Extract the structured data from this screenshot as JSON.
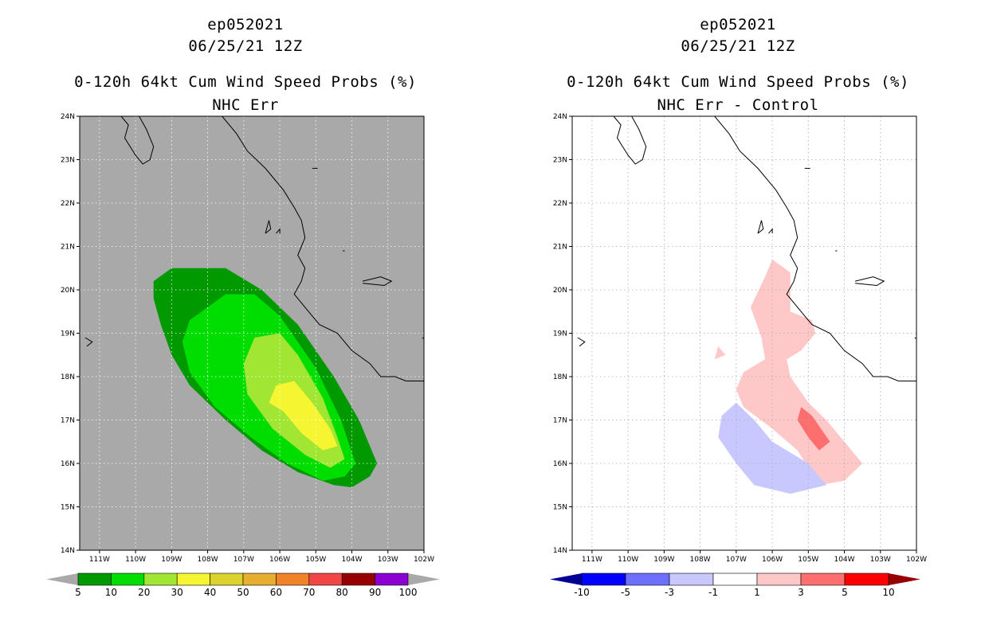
{
  "panels": [
    {
      "storm": "ep052021",
      "datetime": "06/25/21 12Z",
      "product": "0-120h 64kt Cum Wind Speed Probs (%)",
      "subtitle": "NHC Err",
      "background": "#a9a9a9",
      "grid_color": "#ffffff",
      "colorbar": {
        "labels": [
          "5",
          "10",
          "20",
          "30",
          "40",
          "50",
          "60",
          "70",
          "80",
          "90",
          "100"
        ],
        "colors": [
          "#009900",
          "#00dd00",
          "#a0e632",
          "#f5f532",
          "#dcd22d",
          "#e6af2d",
          "#f08228",
          "#f04646",
          "#960000",
          "#8c00d2"
        ],
        "end_color": "#a9a9a9"
      }
    },
    {
      "storm": "ep052021",
      "datetime": "06/25/21 12Z",
      "product": "0-120h 64kt Cum Wind Speed Probs (%)",
      "subtitle": "NHC Err - Control",
      "background": "#ffffff",
      "grid_color": "#aaaaaa",
      "colorbar": {
        "labels": [
          "-10",
          "-5",
          "-3",
          "-1",
          "1",
          "3",
          "5",
          "10"
        ],
        "colors": [
          "#0000ff",
          "#6e6eff",
          "#c8c8ff",
          "#ffffff",
          "#ffc8c8",
          "#ff6e6e",
          "#ff0000"
        ],
        "end_left": "#000096",
        "end_right": "#960000"
      }
    }
  ],
  "axes": {
    "lon": [
      -111,
      -110,
      -109,
      -108,
      -107,
      -106,
      -105,
      -104,
      -103,
      -102
    ],
    "lon_labels": [
      "111W",
      "110W",
      "109W",
      "108W",
      "107W",
      "106W",
      "105W",
      "104W",
      "103W",
      "102W"
    ],
    "lat": [
      14,
      15,
      16,
      17,
      18,
      19,
      20,
      21,
      22,
      23,
      24
    ],
    "lat_labels": [
      "14N",
      "15N",
      "16N",
      "17N",
      "18N",
      "19N",
      "20N",
      "21N",
      "22N",
      "23N",
      "24N"
    ],
    "lon_range": [
      -111.55,
      -102
    ],
    "lat_range": [
      14,
      24
    ]
  },
  "chart_data": [
    {
      "type": "contour",
      "title": "0-120h 64kt Cum Wind Speed Probs (%) - NHC Err",
      "levels": [
        {
          "min": 5,
          "color": "#009900",
          "polygon": [
            [
              -109.5,
              20.2
            ],
            [
              -109.0,
              20.5
            ],
            [
              -107.5,
              20.5
            ],
            [
              -106.5,
              20.0
            ],
            [
              -105.5,
              19.2
            ],
            [
              -104.5,
              18.0
            ],
            [
              -103.8,
              17.0
            ],
            [
              -103.3,
              16.0
            ],
            [
              -103.5,
              15.7
            ],
            [
              -104.0,
              15.45
            ],
            [
              -104.5,
              15.5
            ],
            [
              -105.5,
              15.8
            ],
            [
              -106.5,
              16.3
            ],
            [
              -107.5,
              17.0
            ],
            [
              -108.5,
              17.8
            ],
            [
              -109.0,
              18.5
            ],
            [
              -109.3,
              19.2
            ],
            [
              -109.5,
              19.8
            ]
          ]
        },
        {
          "min": 10,
          "color": "#00dd00",
          "polygon": [
            [
              -108.5,
              19.3
            ],
            [
              -107.5,
              19.9
            ],
            [
              -106.7,
              19.9
            ],
            [
              -106.0,
              19.4
            ],
            [
              -105.0,
              18.2
            ],
            [
              -104.3,
              17.0
            ],
            [
              -103.9,
              16.0
            ],
            [
              -104.2,
              15.7
            ],
            [
              -104.8,
              15.6
            ],
            [
              -105.8,
              16.0
            ],
            [
              -106.8,
              16.6
            ],
            [
              -107.8,
              17.3
            ],
            [
              -108.5,
              18.1
            ],
            [
              -108.7,
              18.8
            ]
          ]
        },
        {
          "min": 20,
          "color": "#a0e632",
          "polygon": [
            [
              -106.7,
              18.9
            ],
            [
              -106.0,
              19.0
            ],
            [
              -105.5,
              18.5
            ],
            [
              -104.8,
              17.5
            ],
            [
              -104.4,
              16.6
            ],
            [
              -104.2,
              16.1
            ],
            [
              -104.6,
              15.9
            ],
            [
              -105.3,
              16.2
            ],
            [
              -106.2,
              16.8
            ],
            [
              -106.9,
              17.6
            ],
            [
              -107.0,
              18.3
            ]
          ]
        },
        {
          "min": 30,
          "color": "#f5f532",
          "polygon": [
            [
              -106.1,
              17.8
            ],
            [
              -105.6,
              17.9
            ],
            [
              -105.1,
              17.4
            ],
            [
              -104.6,
              16.8
            ],
            [
              -104.4,
              16.4
            ],
            [
              -104.8,
              16.3
            ],
            [
              -105.4,
              16.7
            ],
            [
              -105.9,
              17.2
            ],
            [
              -106.3,
              17.4
            ]
          ]
        }
      ]
    },
    {
      "type": "contour",
      "title": "0-120h 64kt Cum Wind Speed Probs (%) - NHC Err - Control",
      "levels": [
        {
          "range": "1 to 3",
          "color": "#ffc8c8",
          "polygon": [
            [
              -106.0,
              20.7
            ],
            [
              -105.5,
              20.4
            ],
            [
              -105.5,
              19.5
            ],
            [
              -104.9,
              19.3
            ],
            [
              -104.8,
              19.0
            ],
            [
              -105.2,
              18.6
            ],
            [
              -105.6,
              18.4
            ],
            [
              -105.5,
              18.0
            ],
            [
              -105.0,
              17.4
            ],
            [
              -104.5,
              17.0
            ],
            [
              -104.0,
              16.5
            ],
            [
              -103.5,
              16.0
            ],
            [
              -104.0,
              15.6
            ],
            [
              -104.7,
              15.5
            ],
            [
              -105.3,
              16.3
            ],
            [
              -106.0,
              16.8
            ],
            [
              -106.8,
              17.3
            ],
            [
              -107.0,
              17.7
            ],
            [
              -106.8,
              18.1
            ],
            [
              -106.2,
              18.4
            ],
            [
              -106.3,
              18.9
            ],
            [
              -106.6,
              19.6
            ],
            [
              -106.2,
              20.3
            ]
          ]
        },
        {
          "range": "1 to 3",
          "color": "#ffc8c8",
          "polygon": [
            [
              -107.5,
              18.7
            ],
            [
              -107.3,
              18.5
            ],
            [
              -107.6,
              18.4
            ]
          ]
        },
        {
          "range": "3 to 5",
          "color": "#ff6e6e",
          "polygon": [
            [
              -105.2,
              17.3
            ],
            [
              -104.9,
              17.1
            ],
            [
              -104.4,
              16.5
            ],
            [
              -104.7,
              16.3
            ],
            [
              -105.0,
              16.6
            ],
            [
              -105.3,
              17.0
            ]
          ]
        },
        {
          "range": "-3 to -1",
          "color": "#c8c8ff",
          "polygon": [
            [
              -107.0,
              17.4
            ],
            [
              -106.5,
              17.0
            ],
            [
              -106.0,
              16.5
            ],
            [
              -105.0,
              16.0
            ],
            [
              -104.5,
              15.5
            ],
            [
              -105.0,
              15.4
            ],
            [
              -105.5,
              15.3
            ],
            [
              -106.0,
              15.4
            ],
            [
              -106.5,
              15.5
            ],
            [
              -107.0,
              16.0
            ],
            [
              -107.5,
              16.6
            ],
            [
              -107.4,
              17.1
            ]
          ]
        }
      ]
    }
  ],
  "coastline": [
    [
      [
        -110.4,
        24
      ],
      [
        -110.2,
        23.8
      ],
      [
        -110.3,
        23.5
      ],
      [
        -110.0,
        23.1
      ],
      [
        -109.8,
        22.9
      ],
      [
        -109.6,
        23.0
      ],
      [
        -109.5,
        23.3
      ],
      [
        -109.7,
        23.7
      ],
      [
        -109.9,
        24.0
      ]
    ],
    [
      [
        -107.6,
        24
      ],
      [
        -107.2,
        23.6
      ],
      [
        -106.9,
        23.2
      ],
      [
        -106.4,
        22.8
      ],
      [
        -105.9,
        22.3
      ],
      [
        -105.6,
        21.9
      ],
      [
        -105.4,
        21.6
      ],
      [
        -105.3,
        21.2
      ],
      [
        -105.5,
        20.8
      ],
      [
        -105.3,
        20.5
      ],
      [
        -105.4,
        20.2
      ],
      [
        -105.6,
        19.9
      ],
      [
        -105.2,
        19.5
      ],
      [
        -104.9,
        19.2
      ],
      [
        -104.4,
        19.0
      ],
      [
        -104.0,
        18.6
      ],
      [
        -103.5,
        18.3
      ],
      [
        -103.2,
        18.0
      ],
      [
        -102.8,
        18.0
      ],
      [
        -102.5,
        17.9
      ],
      [
        -102.0,
        17.9
      ]
    ],
    [
      [
        -106.4,
        21.3
      ],
      [
        -106.3,
        21.6
      ],
      [
        -106.25,
        21.4
      ],
      [
        -106.4,
        21.3
      ]
    ],
    [
      [
        -106.1,
        21.3
      ],
      [
        -106.0,
        21.4
      ],
      [
        -106.0,
        21.3
      ]
    ],
    [
      [
        -103.7,
        20.2
      ],
      [
        -103.2,
        20.3
      ],
      [
        -102.9,
        20.2
      ],
      [
        -103.1,
        20.1
      ],
      [
        -103.7,
        20.15
      ]
    ],
    [
      [
        -111.4,
        18.9
      ],
      [
        -111.2,
        18.8
      ],
      [
        -111.35,
        18.7
      ]
    ],
    [
      [
        -102.05,
        18.9
      ],
      [
        -101.95,
        18.85
      ]
    ],
    [
      [
        -104.25,
        20.9
      ],
      [
        -104.2,
        20.9
      ]
    ],
    [
      [
        -105.1,
        22.8
      ],
      [
        -104.95,
        22.8
      ]
    ]
  ]
}
